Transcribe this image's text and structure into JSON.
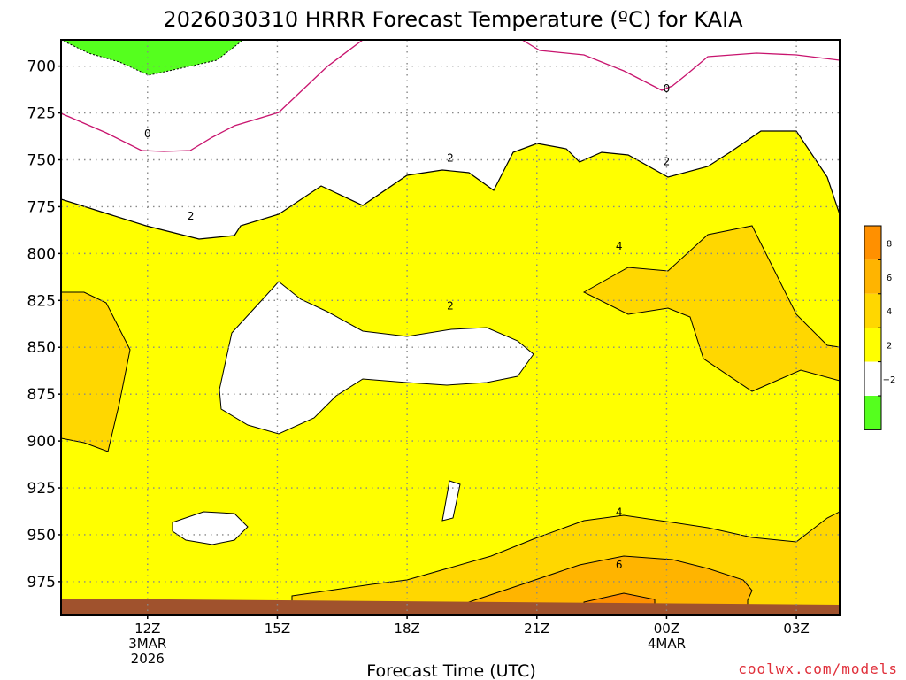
{
  "chart_data": {
    "type": "contour",
    "title": "2026030310 HRRR Forecast Temperature (ºC) for KAIA",
    "xlabel": "Forecast Time (UTC)",
    "x_ticks": [
      {
        "hour": 12,
        "lines": [
          "12Z",
          "3MAR",
          "2026"
        ]
      },
      {
        "hour": 15,
        "lines": [
          "15Z"
        ]
      },
      {
        "hour": 18,
        "lines": [
          "18Z"
        ]
      },
      {
        "hour": 21,
        "lines": [
          "21Z"
        ]
      },
      {
        "hour": 24,
        "lines": [
          "00Z",
          "4MAR"
        ]
      },
      {
        "hour": 27,
        "lines": [
          "03Z"
        ]
      }
    ],
    "x_range_hours": [
      10,
      28
    ],
    "y_range_hpa": [
      993,
      686
    ],
    "y_ticks": [
      700,
      725,
      750,
      775,
      800,
      825,
      850,
      875,
      900,
      925,
      950,
      975
    ],
    "grid": true,
    "contour_levels": [
      0,
      2,
      4,
      6
    ],
    "fill_colors": {
      "below_0": "#55ff1e",
      "0_to_2": "#ffffff",
      "2_to_4": "#ffff00",
      "4_to_6": "#ffd700",
      "6_to_8": "#ffb400",
      "8_to_10": "#ff9000",
      "ground": "#a0522d",
      "freezing_line": "#c8146e"
    },
    "contour_labels": [
      {
        "text": "0",
        "hour": 12,
        "hpa": 736
      },
      {
        "text": "0",
        "hour": 24,
        "hpa": 712
      },
      {
        "text": "2",
        "hour": 13.0,
        "hpa": 780
      },
      {
        "text": "2",
        "hour": 19.0,
        "hpa": 749
      },
      {
        "text": "2",
        "hour": 24.0,
        "hpa": 751
      },
      {
        "text": "2",
        "hour": 19.0,
        "hpa": 828
      },
      {
        "text": "4",
        "hour": 22.9,
        "hpa": 796
      },
      {
        "text": "4",
        "hour": 22.9,
        "hpa": 938
      },
      {
        "text": "6",
        "hour": 22.9,
        "hpa": 966
      }
    ],
    "colorbar": {
      "labels": [
        "8",
        "6",
        "4",
        "2",
        "−2"
      ],
      "colors": [
        "#ff9000",
        "#ffb400",
        "#ffd700",
        "#ffff00",
        "#ffffff",
        "#55ff1e"
      ]
    }
  },
  "credit": "coolwx.com/models"
}
